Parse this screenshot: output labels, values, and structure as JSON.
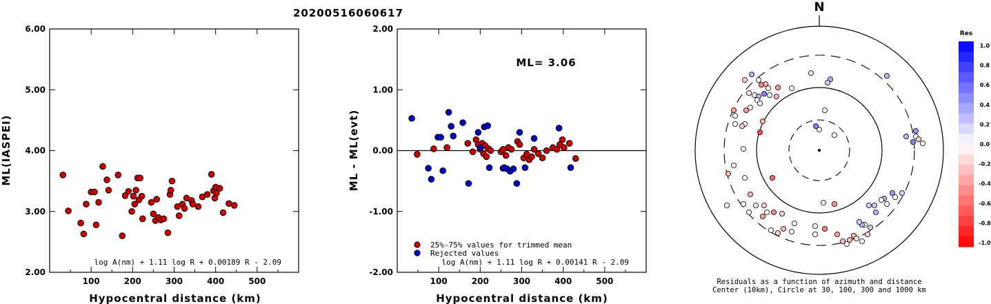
{
  "title": "20200516060617",
  "colors": {
    "accepted": "#cc0000",
    "rejected": "#0000cc"
  },
  "chart_data": [
    {
      "type": "scatter",
      "xlabel": "Hypocentral distance (km)",
      "ylabel": "ML(IASPEI)",
      "xlim": [
        0,
        600
      ],
      "ylim": [
        2.0,
        6.0
      ],
      "xticks": [
        "100",
        "200",
        "300",
        "400",
        "500"
      ],
      "yticks": [
        "2.00",
        "3.00",
        "4.00",
        "5.00",
        "6.00"
      ],
      "formula": "log A(nm) + 1.11 log R + 0.00189 R - 2.09",
      "points": [
        [
          32,
          3.6
        ],
        [
          45,
          3.01
        ],
        [
          75,
          2.81
        ],
        [
          82,
          2.63
        ],
        [
          88,
          3.12
        ],
        [
          100,
          3.32
        ],
        [
          108,
          3.32
        ],
        [
          112,
          2.78
        ],
        [
          118,
          3.15
        ],
        [
          128,
          3.74
        ],
        [
          138,
          3.52
        ],
        [
          142,
          3.35
        ],
        [
          165,
          3.6
        ],
        [
          175,
          2.6
        ],
        [
          182,
          3.26
        ],
        [
          190,
          3.33
        ],
        [
          198,
          3.0
        ],
        [
          202,
          3.25
        ],
        [
          205,
          3.12
        ],
        [
          208,
          3.35
        ],
        [
          212,
          3.55
        ],
        [
          215,
          3.19
        ],
        [
          218,
          3.55
        ],
        [
          222,
          3.25
        ],
        [
          224,
          2.88
        ],
        [
          245,
          3.15
        ],
        [
          250,
          2.96
        ],
        [
          255,
          2.85
        ],
        [
          258,
          3.2
        ],
        [
          262,
          2.9
        ],
        [
          268,
          2.86
        ],
        [
          275,
          2.88
        ],
        [
          285,
          2.65
        ],
        [
          290,
          3.28
        ],
        [
          292,
          3.35
        ],
        [
          295,
          3.5
        ],
        [
          308,
          3.08
        ],
        [
          312,
          2.93
        ],
        [
          320,
          3.12
        ],
        [
          325,
          3.05
        ],
        [
          330,
          3.22
        ],
        [
          342,
          3.18
        ],
        [
          345,
          3.12
        ],
        [
          358,
          3.08
        ],
        [
          368,
          3.24
        ],
        [
          380,
          3.28
        ],
        [
          390,
          3.61
        ],
        [
          395,
          3.34
        ],
        [
          398,
          3.22
        ],
        [
          400,
          3.4
        ],
        [
          402,
          3.3
        ],
        [
          410,
          3.38
        ],
        [
          418,
          2.98
        ],
        [
          432,
          3.13
        ],
        [
          445,
          3.1
        ]
      ]
    },
    {
      "type": "scatter",
      "xlabel": "Hypocentral distance (km)",
      "ylabel": "ML - ML(evt)",
      "xlim": [
        0,
        600
      ],
      "ylim": [
        -2.0,
        2.0
      ],
      "xticks": [
        "100",
        "200",
        "300",
        "400",
        "500"
      ],
      "yticks": [
        "-2.00",
        "-1.00",
        "0.00",
        "1.00",
        "2.00"
      ],
      "annotation": "ML= 3.06",
      "legend": [
        "25%-75% values for trimmed mean",
        "Rejected values"
      ],
      "formula": "log A(nm) + 1.11 log R + 0.00141 R - 2.09",
      "series": [
        {
          "name": "25%-75% values for trimmed mean",
          "points": [
            [
              48,
              -0.06
            ],
            [
              88,
              0.03
            ],
            [
              120,
              0.05
            ],
            [
              170,
              0.12
            ],
            [
              182,
              -0.02
            ],
            [
              190,
              0.18
            ],
            [
              195,
              0.1
            ],
            [
              200,
              0.02
            ],
            [
              205,
              0.12
            ],
            [
              208,
              -0.05
            ],
            [
              212,
              0.08
            ],
            [
              215,
              -0.1
            ],
            [
              220,
              0.03
            ],
            [
              225,
              0.0
            ],
            [
              250,
              -0.02
            ],
            [
              255,
              0.02
            ],
            [
              262,
              -0.08
            ],
            [
              268,
              0.05
            ],
            [
              275,
              0.02
            ],
            [
              290,
              0.15
            ],
            [
              295,
              0.1
            ],
            [
              305,
              -0.12
            ],
            [
              312,
              -0.06
            ],
            [
              318,
              -0.15
            ],
            [
              324,
              -0.1
            ],
            [
              330,
              0.02
            ],
            [
              340,
              -0.05
            ],
            [
              350,
              -0.12
            ],
            [
              360,
              0.0
            ],
            [
              375,
              0.05
            ],
            [
              385,
              0.02
            ],
            [
              392,
              0.1
            ],
            [
              398,
              0.18
            ],
            [
              402,
              0.05
            ],
            [
              415,
              0.12
            ],
            [
              430,
              -0.13
            ]
          ]
        },
        {
          "name": "Rejected values",
          "points": [
            [
              35,
              0.53
            ],
            [
              75,
              -0.29
            ],
            [
              82,
              -0.47
            ],
            [
              98,
              0.22
            ],
            [
              105,
              0.22
            ],
            [
              110,
              -0.33
            ],
            [
              124,
              0.63
            ],
            [
              130,
              0.4
            ],
            [
              135,
              0.24
            ],
            [
              158,
              0.46
            ],
            [
              172,
              -0.54
            ],
            [
              195,
              0.3
            ],
            [
              200,
              0.05
            ],
            [
              210,
              0.39
            ],
            [
              218,
              0.41
            ],
            [
              222,
              -0.28
            ],
            [
              255,
              -0.29
            ],
            [
              258,
              -0.28
            ],
            [
              265,
              -0.3
            ],
            [
              272,
              -0.34
            ],
            [
              280,
              -0.3
            ],
            [
              288,
              -0.54
            ],
            [
              295,
              0.3
            ],
            [
              308,
              -0.28
            ],
            [
              330,
              0.2
            ],
            [
              390,
              0.37
            ],
            [
              418,
              -0.28
            ]
          ]
        }
      ]
    },
    {
      "type": "polar-scatter",
      "north_label": "N",
      "caption_line1": "Residuals as a function of azimuth and distance",
      "caption_line2": "Center (10km), Circle at 30, 100, 300 and 1000 km",
      "colorbar_title": "Res",
      "colorbar_ticks": [
        "1.0",
        "0.8",
        "0.6",
        "0.4",
        "0.2",
        "0.0",
        "-0.2",
        "-0.4",
        "-0.6",
        "-0.8",
        "-1.0"
      ],
      "points": [
        [
          -98,
          -110,
          0.3
        ],
        [
          -108,
          -102,
          -0.2
        ],
        [
          -88,
          -102,
          0.0
        ],
        [
          -78,
          -96,
          -0.3
        ],
        [
          -60,
          -91,
          -0.4
        ],
        [
          -74,
          -90,
          0.0
        ],
        [
          -40,
          -90,
          0.0
        ],
        [
          -102,
          -83,
          -0.1
        ],
        [
          -94,
          -80,
          0.0
        ],
        [
          -88,
          -78,
          0.3
        ],
        [
          -80,
          -82,
          0.5
        ],
        [
          -72,
          -80,
          0.0
        ],
        [
          -62,
          -78,
          -0.3
        ],
        [
          -84,
          -95,
          -0.5
        ],
        [
          -90,
          -73,
          0.0
        ],
        [
          -86,
          -68,
          0.0
        ],
        [
          -100,
          -62,
          0.0
        ],
        [
          -124,
          -58,
          -0.4
        ],
        [
          -122,
          -50,
          0.0
        ],
        [
          -106,
          -58,
          -0.4
        ],
        [
          -122,
          -38,
          0.0
        ],
        [
          -108,
          -38,
          0.0
        ],
        [
          -112,
          -35,
          -0.2
        ],
        [
          -110,
          -2,
          0.0
        ],
        [
          -12,
          -112,
          -0.1
        ],
        [
          16,
          -103,
          0.3
        ],
        [
          12,
          -98,
          0.2
        ],
        [
          98,
          -108,
          0.3
        ],
        [
          8,
          -58,
          0.0
        ],
        [
          -5,
          -35,
          0.5
        ],
        [
          -82,
          -42,
          -0.3
        ],
        [
          0,
          -30,
          0.0
        ],
        [
          140,
          -28,
          0.4
        ],
        [
          126,
          -20,
          0.3
        ],
        [
          150,
          -10,
          0.0
        ],
        [
          136,
          -12,
          0.5
        ],
        [
          140,
          -20,
          0.0
        ],
        [
          144,
          -16,
          -0.2
        ],
        [
          -132,
          34,
          -0.3
        ],
        [
          -108,
          40,
          0.0
        ],
        [
          -124,
          22,
          0.0
        ],
        [
          -110,
          78,
          0.0
        ],
        [
          -134,
          80,
          0.0
        ],
        [
          -92,
          80,
          -0.1
        ],
        [
          -80,
          80,
          -0.2
        ],
        [
          -76,
          90,
          0.0
        ],
        [
          -66,
          90,
          -0.5
        ],
        [
          -54,
          92,
          -0.2
        ],
        [
          -40,
          118,
          0.0
        ],
        [
          -6,
          122,
          0.0
        ],
        [
          26,
          122,
          -0.4
        ],
        [
          34,
          132,
          -0.3
        ],
        [
          40,
          136,
          0.0
        ],
        [
          50,
          124,
          -0.3
        ],
        [
          54,
          128,
          -0.1
        ],
        [
          62,
          132,
          0.0
        ],
        [
          70,
          122,
          -0.2
        ],
        [
          74,
          112,
          0.2
        ],
        [
          66,
          108,
          0.0
        ],
        [
          62,
          108,
          0.3
        ],
        [
          58,
          104,
          0.2
        ],
        [
          82,
          90,
          0.3
        ],
        [
          98,
          78,
          0.0
        ],
        [
          110,
          68,
          0.0
        ],
        [
          120,
          62,
          0.2
        ],
        [
          106,
          62,
          0.4
        ],
        [
          94,
          70,
          0.3
        ],
        [
          80,
          80,
          0.2
        ],
        [
          90,
          72,
          0.0
        ],
        [
          72,
          80,
          0.2
        ],
        [
          22,
          78,
          -0.4
        ],
        [
          6,
          76,
          0.0
        ],
        [
          8,
          114,
          -0.5
        ],
        [
          -36,
          106,
          0.0
        ],
        [
          -100,
          64,
          -0.3
        ],
        [
          -86,
          -26,
          -0.7
        ],
        [
          -68,
          40,
          -0.6
        ],
        [
          -82,
          96,
          -0.4
        ],
        [
          -102,
          90,
          0.0
        ],
        [
          -70,
          116,
          0.0
        ],
        [
          -60,
          120,
          -0.2
        ],
        [
          -52,
          114,
          -0.3
        ],
        [
          22,
          -22,
          0.0
        ],
        [
          44,
          130,
          -0.3
        ],
        [
          -6,
          110,
          0.0
        ]
      ]
    }
  ]
}
